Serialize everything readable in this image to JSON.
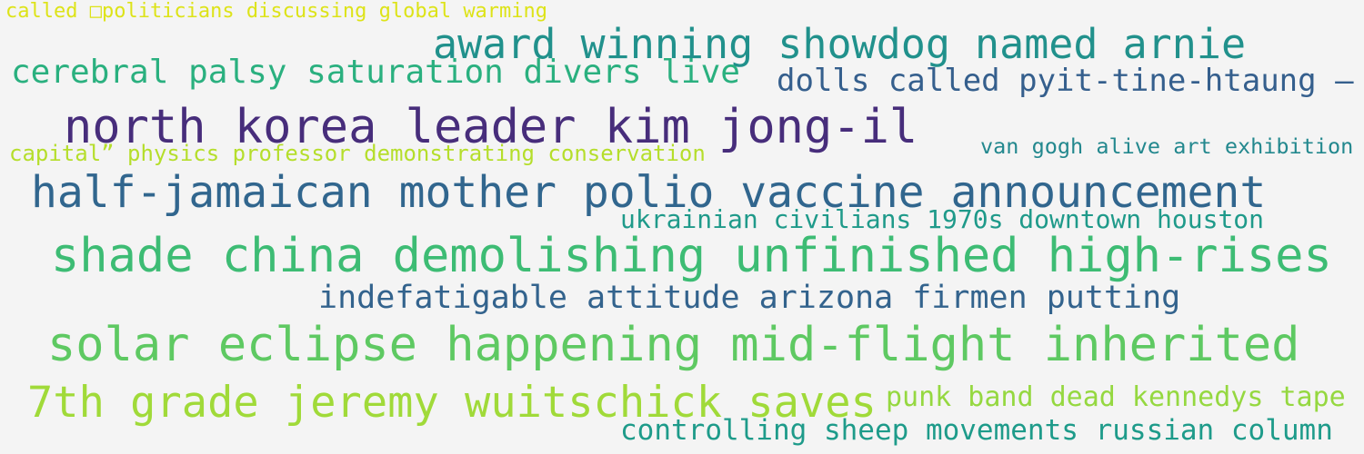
{
  "cloud": {
    "phrases": [
      {
        "text": "called □politicians discussing global warming",
        "color": "#dde318"
      },
      {
        "text": "award winning showdog named arnie",
        "color": "#21918c"
      },
      {
        "text": "cerebral palsy saturation divers live",
        "color": "#2ab07f"
      },
      {
        "text": "dolls called pyit-tine-htaung –",
        "color": "#355f8d"
      },
      {
        "text": "north korea leader kim jong-il",
        "color": "#472d7b"
      },
      {
        "text": "capital” physics professor demonstrating conservation",
        "color": "#b5de2b"
      },
      {
        "text": "van gogh alive art exhibition",
        "color": "#23888e"
      },
      {
        "text": "half-jamaican mother polio vaccine announcement",
        "color": "#31668e"
      },
      {
        "text": "ukrainian civilians 1970s downtown houston",
        "color": "#1f9a8a"
      },
      {
        "text": "shade china demolishing unfinished high-rises",
        "color": "#3dbc74"
      },
      {
        "text": "indefatigable attitude arizona firmen putting",
        "color": "#33638d"
      },
      {
        "text": "solar eclipse happening mid-flight inherited",
        "color": "#5ec962"
      },
      {
        "text": "7th grade jeremy wuitschick saves",
        "color": "#a0da39"
      },
      {
        "text": "punk band dead kennedys tape",
        "color": "#95d840"
      },
      {
        "text": "controlling sheep movements russian column",
        "color": "#1e9b8a"
      }
    ]
  }
}
